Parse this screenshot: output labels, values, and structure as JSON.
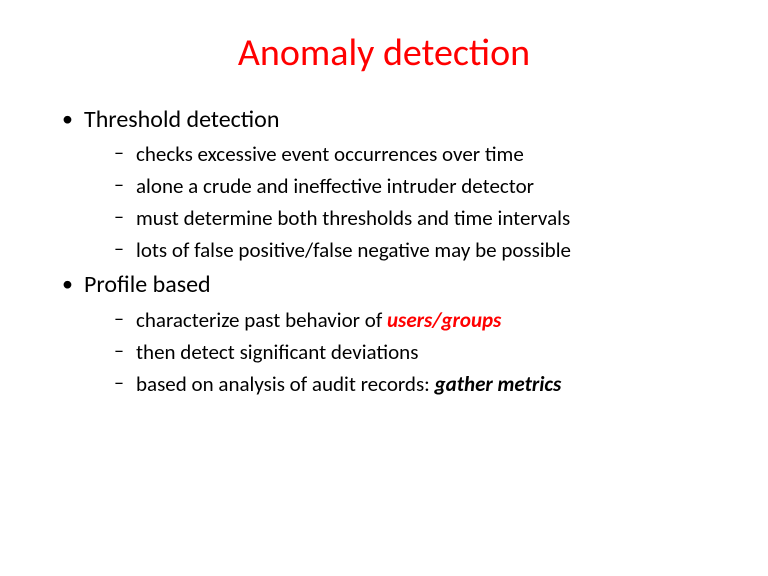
{
  "title": {
    "text": "Anomaly detection",
    "color": "#ff0000",
    "fontsize": 38
  },
  "accent_color": "#ff0000",
  "body_color": "#000000",
  "background_color": "#ffffff",
  "bullets": [
    {
      "label": "Threshold detection",
      "sub": [
        {
          "text": "checks excessive event occurrences over time"
        },
        {
          "text": "alone a crude and ineffective intruder detector"
        },
        {
          "text": "must determine both thresholds and time intervals"
        },
        {
          "text": "lots of false positive/false negative may be possible"
        }
      ]
    },
    {
      "label": "Profile based",
      "sub": [
        {
          "prefix": "characterize past behavior of ",
          "emph": "users/groups",
          "emph_color": "#ff0000"
        },
        {
          "text": "then detect significant deviations"
        },
        {
          "prefix": "based on analysis of audit records: ",
          "emph": "gather metrics",
          "emph_color": "#000000"
        }
      ]
    }
  ]
}
